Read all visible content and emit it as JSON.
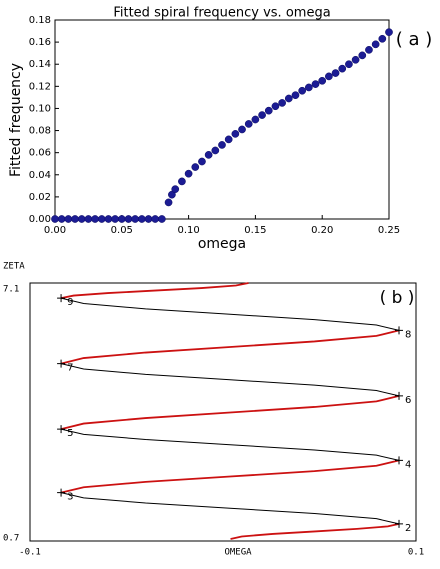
{
  "chart_data": [
    {
      "type": "scatter",
      "title": "Fitted spiral frequency vs. omega",
      "xlabel": "omega",
      "ylabel": "Fitted frequency",
      "annotation": "( a )",
      "color": "#1c1c94",
      "x": [
        0,
        0.005,
        0.01,
        0.015,
        0.02,
        0.025,
        0.03,
        0.035,
        0.04,
        0.045,
        0.05,
        0.055,
        0.06,
        0.065,
        0.07,
        0.075,
        0.08,
        0.085,
        0.0875,
        0.09,
        0.095,
        0.1,
        0.105,
        0.11,
        0.115,
        0.12,
        0.125,
        0.13,
        0.135,
        0.14,
        0.145,
        0.15,
        0.155,
        0.16,
        0.165,
        0.17,
        0.175,
        0.18,
        0.185,
        0.19,
        0.195,
        0.2,
        0.205,
        0.21,
        0.215,
        0.22,
        0.225,
        0.23,
        0.235,
        0.24,
        0.245,
        0.25
      ],
      "values": [
        0,
        0,
        0,
        0,
        0,
        0,
        0,
        0,
        0,
        0,
        0,
        0,
        0,
        0,
        0,
        0,
        0,
        0.015,
        0.022,
        0.027,
        0.034,
        0.041,
        0.047,
        0.052,
        0.058,
        0.062,
        0.067,
        0.072,
        0.077,
        0.081,
        0.086,
        0.09,
        0.094,
        0.098,
        0.102,
        0.105,
        0.109,
        0.112,
        0.116,
        0.119,
        0.122,
        0.125,
        0.129,
        0.132,
        0.136,
        0.14,
        0.144,
        0.148,
        0.153,
        0.158,
        0.163,
        0.169
      ],
      "xlim": [
        0,
        0.25
      ],
      "xticks": [
        {
          "value": 0,
          "label": "0.00"
        },
        {
          "value": 0.05,
          "label": "0.05"
        },
        {
          "value": 0.1,
          "label": "0.10"
        },
        {
          "value": 0.15,
          "label": "0.15"
        },
        {
          "value": 0.2,
          "label": "0.20"
        },
        {
          "value": 0.25,
          "label": "0.25"
        }
      ],
      "ylim": [
        0,
        0.18
      ],
      "yticks": [
        {
          "value": 0,
          "label": "0.00"
        },
        {
          "value": 0.02,
          "label": "0.02"
        },
        {
          "value": 0.04,
          "label": "0.04"
        },
        {
          "value": 0.06,
          "label": "0.06"
        },
        {
          "value": 0.08,
          "label": "0.08"
        },
        {
          "value": 0.1,
          "label": "0.10"
        },
        {
          "value": 0.12,
          "label": "0.12"
        },
        {
          "value": 0.14,
          "label": "0.14"
        },
        {
          "value": 0.16,
          "label": "0.16"
        },
        {
          "value": 0.18,
          "label": "0.18"
        }
      ]
    },
    {
      "type": "line",
      "xlabel": "OMEGA",
      "ylabel": "ZETA",
      "annotation": "( b )",
      "xlim": [
        -0.1,
        0.1
      ],
      "xticks": [
        -0.1,
        0.1
      ],
      "ylim": [
        0.7,
        7.1
      ],
      "yticks": [
        0.7,
        7.1
      ],
      "series": [
        {
          "color": "#cc1111",
          "x": [
            0.0039,
            0.0097,
            0.0257,
            0.0476,
            0.0694,
            0.0854,
            0.0912,
            null,
            -0.0839,
            -0.0722,
            -0.0401,
            0.0037,
            0.0474,
            0.0795,
            0.0912,
            null,
            -0.0839,
            -0.0722,
            -0.0401,
            0.0037,
            0.0474,
            0.0795,
            0.0912,
            null,
            -0.0839,
            -0.0722,
            -0.0401,
            0.0037,
            0.0474,
            0.0795,
            0.0912,
            null,
            -0.0839,
            -0.0774,
            -0.0596,
            -0.0354,
            -0.0111,
            0.0067,
            0.0132
          ],
          "values": [
            0.75,
            0.8125,
            0.875,
            0.9375,
            1.0,
            1.0625,
            1.125,
            null,
            1.9,
            2.033,
            2.167,
            2.3,
            2.433,
            2.567,
            2.7,
            null,
            3.475,
            3.613,
            3.75,
            3.888,
            4.025,
            4.163,
            4.3,
            null,
            5.1,
            5.238,
            5.375,
            5.513,
            5.65,
            5.788,
            5.925,
            null,
            6.725,
            6.788,
            6.85,
            6.913,
            6.975,
            7.038,
            7.1
          ]
        },
        {
          "color": "#000000",
          "x": [
            0.0912,
            0.0795,
            0.0474,
            0.0037,
            -0.0401,
            -0.0722,
            -0.0839,
            null,
            0.0912,
            0.0795,
            0.0474,
            0.0037,
            -0.0401,
            -0.0722,
            -0.0839,
            null,
            0.0912,
            0.0795,
            0.0474,
            0.0037,
            -0.0401,
            -0.0722,
            -0.0839,
            null,
            0.0912,
            0.0795,
            0.0474,
            0.0037,
            -0.0401,
            -0.0722,
            -0.0839
          ],
          "values": [
            1.125,
            1.254,
            1.383,
            1.513,
            1.642,
            1.771,
            1.9,
            null,
            2.7,
            2.829,
            2.958,
            3.088,
            3.217,
            3.346,
            3.475,
            null,
            4.3,
            4.433,
            4.567,
            4.7,
            4.833,
            4.967,
            5.1,
            null,
            5.925,
            6.058,
            6.192,
            6.325,
            6.458,
            6.592,
            6.725
          ]
        }
      ],
      "points": [
        {
          "label": "2",
          "x": 0.0912,
          "y": 1.125
        },
        {
          "label": "3",
          "x": -0.0839,
          "y": 1.9
        },
        {
          "label": "4",
          "x": 0.0912,
          "y": 2.7
        },
        {
          "label": "5",
          "x": -0.0839,
          "y": 3.475
        },
        {
          "label": "6",
          "x": 0.0912,
          "y": 4.3
        },
        {
          "label": "7",
          "x": -0.0839,
          "y": 5.1
        },
        {
          "label": "8",
          "x": 0.0912,
          "y": 5.925
        },
        {
          "label": "9",
          "x": -0.0839,
          "y": 6.725
        }
      ]
    }
  ]
}
